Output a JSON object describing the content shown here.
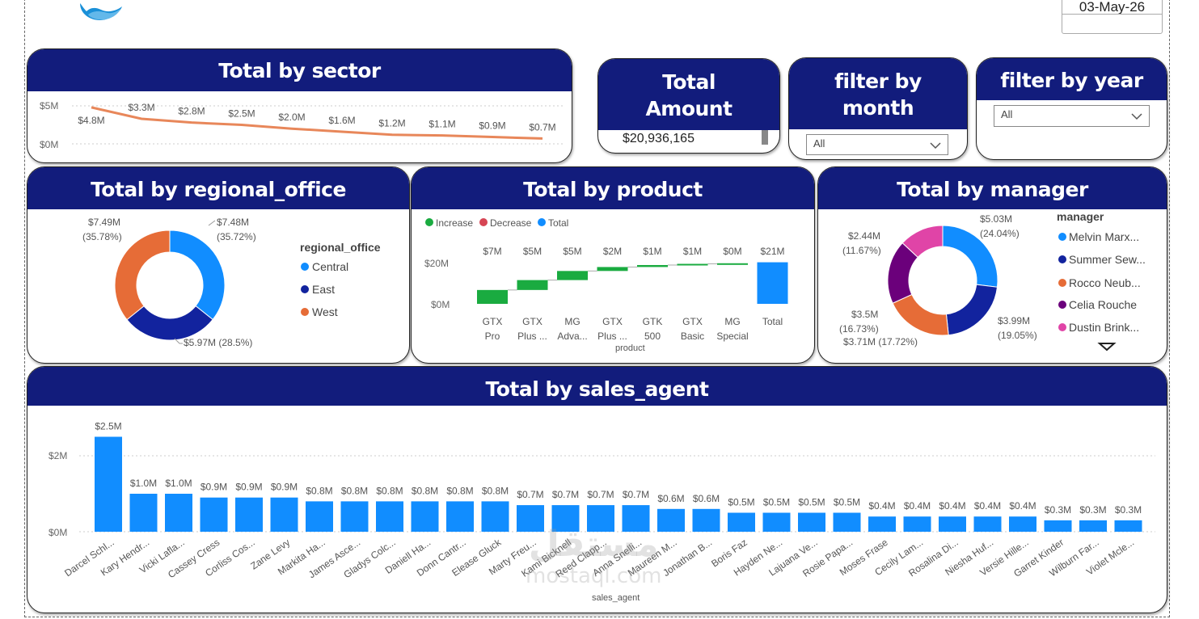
{
  "header": {
    "date": "03-May-26",
    "logo_icon": "wave-logo-icon"
  },
  "colors": {
    "header_bg": "#121c7c",
    "primary_blue": "#118dff",
    "dark_blue": "#12239e",
    "orange": "#e66c37",
    "purple": "#6b007b",
    "pink": "#e044a7",
    "violet": "#744ec2",
    "green": "#1aab40",
    "red": "#d64554",
    "line_orange": "#e8875a"
  },
  "sector": {
    "title": "Total by sector",
    "y_ticks": [
      "$5M",
      "$0M"
    ],
    "labels": [
      "$4.8M",
      "$3.3M",
      "$2.8M",
      "$2.5M",
      "$2.0M",
      "$1.6M",
      "$1.2M",
      "$1.1M",
      "$0.9M",
      "$0.7M"
    ]
  },
  "total_amount": {
    "title_line1": "Total",
    "title_line2": "Amount",
    "value": "$20,936,165"
  },
  "filter_month": {
    "title_line1": "filter by",
    "title_line2": "month",
    "value": "All"
  },
  "filter_year": {
    "title": "filter by year",
    "value": "All"
  },
  "regional": {
    "title": "Total by regional_office",
    "legend_title": "regional_office",
    "legend": [
      "Central",
      "East",
      "West"
    ],
    "labels": {
      "central": "$7.48M",
      "central_pct": "(35.72%)",
      "east": "$5.97M (28.5%)",
      "west": "$7.49M",
      "west_pct": "(35.78%)"
    }
  },
  "product": {
    "title": "Total by product",
    "legend": [
      "Increase",
      "Decrease",
      "Total"
    ],
    "y_ticks": [
      "$20M",
      "$0M"
    ],
    "x_title": "product",
    "categories": [
      [
        "GTX",
        "Pro"
      ],
      [
        "GTX",
        "Plus ..."
      ],
      [
        "MG",
        "Adva..."
      ],
      [
        "GTX",
        "Plus ..."
      ],
      [
        "GTK",
        "500"
      ],
      [
        "GTX",
        "Basic"
      ],
      [
        "MG",
        "Special"
      ],
      [
        "Total",
        ""
      ]
    ],
    "value_labels": [
      "$7M",
      "$5M",
      "$5M",
      "$2M",
      "$1M",
      "$1M",
      "$0M",
      "$21M"
    ]
  },
  "manager": {
    "title": "Total by manager",
    "legend_title": "manager",
    "legend": [
      "Melvin Marx...",
      "Summer Sew...",
      "Rocco Neub...",
      "Celia Rouche",
      "Dustin Brink..."
    ],
    "labels": {
      "l1": "$5.03M",
      "l1p": "(24.04%)",
      "l2": "$3.99M",
      "l2p": "(19.05%)",
      "l3": "$3.71M (17.72%)",
      "l4": "$3.5M",
      "l4p": "(16.73%)",
      "l5": "$2.44M",
      "l5p": "(11.67%)"
    }
  },
  "agents": {
    "title": "Total by sales_agent",
    "y_ticks": [
      "$2M",
      "$0M"
    ],
    "x_title": "sales_agent"
  },
  "watermark": {
    "line1": "مستقل",
    "line2": "mostaql.com"
  },
  "chart_data": [
    {
      "type": "line",
      "title": "Total by sector",
      "values": [
        4.8,
        3.3,
        2.8,
        2.5,
        2.0,
        1.6,
        1.2,
        1.1,
        0.9,
        0.7
      ],
      "ylabel": "",
      "ylim": [
        0,
        5
      ],
      "unit": "$M",
      "grid": true
    },
    {
      "type": "pie",
      "title": "Total by regional_office",
      "categories": [
        "Central",
        "East",
        "West"
      ],
      "values": [
        7.48,
        5.97,
        7.49
      ],
      "percent": [
        35.72,
        28.5,
        35.78
      ],
      "unit": "$M",
      "legend": "right"
    },
    {
      "type": "bar",
      "title": "Total by product",
      "categories": [
        "GTX Pro",
        "GTX Plus ...",
        "MG Adva...",
        "GTX Plus ...",
        "GTK 500",
        "GTX Basic",
        "MG Special",
        "Total"
      ],
      "values": [
        7,
        5,
        5,
        2,
        1,
        1,
        0,
        21
      ],
      "xlabel": "product",
      "ylim": [
        0,
        22
      ],
      "unit": "$M",
      "legend": "top-left"
    },
    {
      "type": "pie",
      "title": "Total by manager",
      "categories": [
        "Melvin Marx...",
        "Summer Sew...",
        "Rocco Neub...",
        "Celia Rouche",
        "Dustin Brink..."
      ],
      "values": [
        5.03,
        3.99,
        3.71,
        3.5,
        2.44
      ],
      "percent": [
        24.04,
        19.05,
        17.72,
        16.73,
        11.67
      ],
      "unit": "$M",
      "legend": "right"
    },
    {
      "type": "bar",
      "title": "Total by sales_agent",
      "categories": [
        "Darcel Schl...",
        "Kary Hendr...",
        "Vicki Lafla...",
        "Cassey Cress",
        "Corliss Cos...",
        "Zane Levy",
        "Markita Ha...",
        "James Asce...",
        "Gladys Colc...",
        "Daniell Ha...",
        "Donn Cantr...",
        "Elease Gluck",
        "Marty Freu...",
        "Kami Bicknell",
        "Reed Clapp...",
        "Anna Snelli...",
        "Maureen M...",
        "Jonathan B...",
        "Boris Faz",
        "Hayden Ne...",
        "Lajuana Ve...",
        "Rosie Papa...",
        "Moses Frase",
        "Cecily Lam...",
        "Rosalina Di...",
        "Niesha Huf...",
        "Versie Hille...",
        "Garret Kinder",
        "Wilburn Far...",
        "Violet Mcle..."
      ],
      "values": [
        2.5,
        1.0,
        1.0,
        0.9,
        0.9,
        0.9,
        0.8,
        0.8,
        0.8,
        0.8,
        0.8,
        0.8,
        0.7,
        0.7,
        0.7,
        0.7,
        0.6,
        0.6,
        0.5,
        0.5,
        0.5,
        0.5,
        0.4,
        0.4,
        0.4,
        0.4,
        0.4,
        0.3,
        0.3,
        0.3
      ],
      "labels": [
        "$2.5M",
        "$1.0M",
        "$1.0M",
        "$0.9M",
        "$0.9M",
        "$0.9M",
        "$0.8M",
        "$0.8M",
        "$0.8M",
        "$0.8M",
        "$0.8M",
        "$0.8M",
        "$0.7M",
        "$0.7M",
        "$0.7M",
        "$0.7M",
        "$0.6M",
        "$0.6M",
        "$0.5M",
        "$0.5M",
        "$0.5M",
        "$0.5M",
        "$0.4M",
        "$0.4M",
        "$0.4M",
        "$0.4M",
        "$0.4M",
        "$0.3M",
        "$0.3M",
        "$0.3M"
      ],
      "xlabel": "sales_agent",
      "ylim": [
        0,
        2.7
      ],
      "unit": "$M",
      "grid": true
    }
  ]
}
